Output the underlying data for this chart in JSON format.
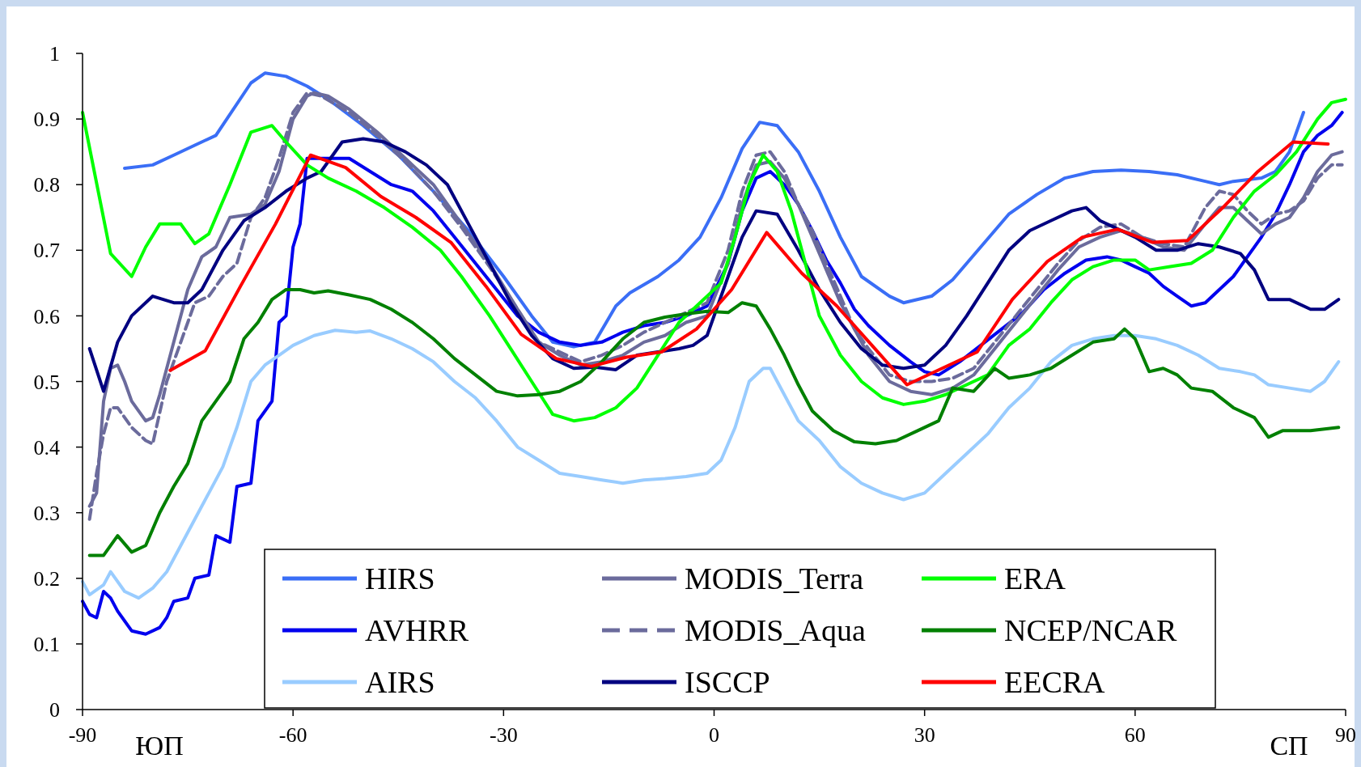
{
  "chart_data": {
    "type": "line",
    "line_style": "solid",
    "xlim": [
      -90,
      90
    ],
    "xticks": [
      -90,
      -60,
      -30,
      0,
      30,
      60,
      90
    ],
    "ylim": [
      0,
      1
    ],
    "yticks": [
      0,
      0.1,
      0.2,
      0.3,
      0.4,
      0.5,
      0.6,
      0.7,
      0.8,
      0.9,
      1
    ],
    "grid": false,
    "legend": "bottom",
    "annotations": [
      "ЮП",
      "СП"
    ],
    "series": [
      {
        "name": "HIRS",
        "color": "#3a6ef6",
        "x": [
          -84,
          -80,
          -77,
          -74,
          -71,
          -66,
          -64,
          -61,
          -58,
          -55,
          -50,
          -45,
          -40,
          -35,
          -30,
          -26,
          -23,
          -20,
          -17,
          -14,
          -12,
          -8,
          -5,
          -2,
          1,
          4,
          6.5,
          9,
          12,
          15,
          18,
          21,
          25,
          27,
          31,
          34,
          38,
          42,
          46,
          50,
          54,
          58,
          62,
          66,
          70,
          72,
          74,
          78,
          80,
          82,
          84
        ],
        "values": [
          0.825,
          0.83,
          0.845,
          0.86,
          0.875,
          0.955,
          0.97,
          0.965,
          0.95,
          0.93,
          0.89,
          0.845,
          0.79,
          0.73,
          0.66,
          0.6,
          0.56,
          0.553,
          0.56,
          0.615,
          0.635,
          0.66,
          0.685,
          0.72,
          0.78,
          0.855,
          0.895,
          0.89,
          0.85,
          0.79,
          0.72,
          0.66,
          0.63,
          0.62,
          0.63,
          0.655,
          0.705,
          0.755,
          0.785,
          0.81,
          0.82,
          0.822,
          0.82,
          0.815,
          0.805,
          0.8,
          0.805,
          0.81,
          0.82,
          0.85,
          0.91
        ]
      },
      {
        "name": "AVHRR",
        "color": "#0000ee",
        "x": [
          -90,
          -89,
          -88,
          -87,
          -86,
          -85,
          -83,
          -81,
          -79,
          -78,
          -77,
          -75,
          -74,
          -72,
          -71,
          -69,
          -68,
          -66,
          -65,
          -63,
          -62,
          -61,
          -60,
          -59,
          -58,
          -57,
          -55,
          -52,
          -49,
          -46,
          -43,
          -40,
          -37,
          -34,
          -31,
          -28,
          -25,
          -22,
          -19,
          -16,
          -13,
          -10,
          -7,
          -4,
          -1,
          2,
          4,
          6,
          8,
          10,
          12,
          14,
          16,
          18,
          20,
          22,
          25,
          28,
          30,
          32,
          35,
          38,
          41,
          44,
          47,
          50,
          53,
          56,
          58,
          60,
          62,
          64,
          66,
          68,
          70,
          72,
          74,
          76,
          78,
          80,
          82,
          84,
          86,
          88,
          89.5
        ],
        "values": [
          0.165,
          0.145,
          0.14,
          0.18,
          0.17,
          0.15,
          0.12,
          0.115,
          0.125,
          0.14,
          0.165,
          0.17,
          0.2,
          0.205,
          0.265,
          0.255,
          0.34,
          0.345,
          0.44,
          0.47,
          0.59,
          0.6,
          0.705,
          0.74,
          0.84,
          0.84,
          0.84,
          0.84,
          0.82,
          0.8,
          0.79,
          0.76,
          0.72,
          0.68,
          0.64,
          0.6,
          0.575,
          0.56,
          0.555,
          0.56,
          0.575,
          0.585,
          0.59,
          0.6,
          0.615,
          0.68,
          0.76,
          0.81,
          0.82,
          0.8,
          0.77,
          0.73,
          0.685,
          0.65,
          0.61,
          0.585,
          0.555,
          0.53,
          0.515,
          0.51,
          0.53,
          0.555,
          0.58,
          0.605,
          0.64,
          0.665,
          0.685,
          0.69,
          0.685,
          0.675,
          0.665,
          0.645,
          0.63,
          0.615,
          0.62,
          0.64,
          0.66,
          0.69,
          0.72,
          0.755,
          0.8,
          0.85,
          0.875,
          0.89,
          0.91
        ]
      },
      {
        "name": "AIRS",
        "color": "#99ccff",
        "x": [
          -90,
          -89,
          -87,
          -86,
          -84,
          -82,
          -80,
          -78,
          -76,
          -74,
          -72,
          -70,
          -68,
          -66,
          -64,
          -62,
          -60,
          -57,
          -54,
          -51,
          -49,
          -46,
          -43,
          -40,
          -37,
          -34,
          -31,
          -28,
          -25,
          -22,
          -19,
          -16,
          -13,
          -10,
          -7,
          -4,
          -1,
          1,
          3,
          5,
          7,
          8,
          10,
          12,
          15,
          18,
          21,
          24,
          27,
          30,
          33,
          36,
          39,
          42,
          45,
          48,
          51,
          54,
          57,
          60,
          63,
          66,
          69,
          72,
          75,
          77,
          79,
          82,
          85,
          87,
          89
        ],
        "values": [
          0.195,
          0.175,
          0.19,
          0.21,
          0.18,
          0.17,
          0.185,
          0.21,
          0.25,
          0.29,
          0.33,
          0.37,
          0.43,
          0.5,
          0.525,
          0.54,
          0.555,
          0.57,
          0.578,
          0.575,
          0.577,
          0.565,
          0.55,
          0.53,
          0.5,
          0.475,
          0.44,
          0.4,
          0.38,
          0.36,
          0.355,
          0.35,
          0.345,
          0.35,
          0.352,
          0.355,
          0.36,
          0.38,
          0.43,
          0.5,
          0.52,
          0.52,
          0.48,
          0.44,
          0.41,
          0.37,
          0.345,
          0.33,
          0.32,
          0.33,
          0.36,
          0.39,
          0.42,
          0.46,
          0.49,
          0.53,
          0.555,
          0.565,
          0.57,
          0.57,
          0.565,
          0.555,
          0.54,
          0.52,
          0.515,
          0.51,
          0.495,
          0.49,
          0.485,
          0.5,
          0.53
        ]
      },
      {
        "name": "MODIS_Terra",
        "color": "#6b6b9c",
        "x": [
          -89,
          -88,
          -87,
          -86,
          -85,
          -84,
          -83,
          -81,
          -80,
          -79,
          -77,
          -75,
          -73,
          -71,
          -69,
          -66,
          -64,
          -62,
          -60,
          -58,
          -57,
          -55,
          -52,
          -48,
          -44,
          -40,
          -36,
          -32,
          -28,
          -25,
          -22,
          -19,
          -16,
          -13,
          -10,
          -7,
          -4,
          -1,
          2,
          4,
          6,
          8,
          10,
          12,
          14,
          16,
          18,
          20,
          22,
          25,
          28,
          31,
          34,
          37,
          40,
          43,
          46,
          49,
          52,
          55,
          58,
          61,
          64,
          67,
          70,
          72,
          74,
          76,
          78,
          80,
          82,
          84,
          86,
          88,
          89.5
        ],
        "values": [
          0.31,
          0.33,
          0.47,
          0.52,
          0.525,
          0.5,
          0.47,
          0.44,
          0.445,
          0.48,
          0.56,
          0.64,
          0.69,
          0.705,
          0.75,
          0.755,
          0.77,
          0.82,
          0.9,
          0.935,
          0.94,
          0.935,
          0.915,
          0.88,
          0.84,
          0.8,
          0.74,
          0.68,
          0.61,
          0.56,
          0.54,
          0.525,
          0.53,
          0.54,
          0.56,
          0.57,
          0.59,
          0.6,
          0.68,
          0.77,
          0.83,
          0.835,
          0.81,
          0.77,
          0.72,
          0.67,
          0.62,
          0.58,
          0.54,
          0.5,
          0.485,
          0.48,
          0.49,
          0.51,
          0.55,
          0.59,
          0.63,
          0.67,
          0.705,
          0.72,
          0.73,
          0.72,
          0.705,
          0.7,
          0.74,
          0.765,
          0.765,
          0.745,
          0.725,
          0.74,
          0.75,
          0.78,
          0.82,
          0.845,
          0.85
        ]
      },
      {
        "name": "MODIS_Aqua",
        "color": "#6b6b9c",
        "line_style": "dashed",
        "x": [
          -89,
          -88,
          -87,
          -86,
          -85,
          -83,
          -81,
          -80,
          -78,
          -76,
          -74,
          -72,
          -70,
          -68,
          -66,
          -64,
          -62,
          -60,
          -58,
          -56,
          -52,
          -48,
          -44,
          -40,
          -36,
          -32,
          -28,
          -25,
          -22,
          -19,
          -16,
          -13,
          -10,
          -7,
          -4,
          -1,
          2,
          4,
          6,
          8,
          10,
          12,
          14,
          16,
          18,
          20,
          22,
          25,
          28,
          31,
          34,
          37,
          40,
          43,
          46,
          49,
          52,
          55,
          58,
          61,
          64,
          67,
          70,
          72,
          74,
          76,
          78,
          80,
          82,
          84,
          86,
          88,
          89.5
        ],
        "values": [
          0.29,
          0.36,
          0.42,
          0.46,
          0.46,
          0.43,
          0.41,
          0.405,
          0.5,
          0.56,
          0.62,
          0.63,
          0.66,
          0.68,
          0.75,
          0.78,
          0.84,
          0.91,
          0.94,
          0.935,
          0.91,
          0.875,
          0.835,
          0.79,
          0.735,
          0.675,
          0.61,
          0.56,
          0.545,
          0.53,
          0.54,
          0.555,
          0.575,
          0.59,
          0.605,
          0.62,
          0.7,
          0.79,
          0.845,
          0.85,
          0.82,
          0.77,
          0.73,
          0.68,
          0.63,
          0.58,
          0.55,
          0.51,
          0.5,
          0.5,
          0.505,
          0.52,
          0.56,
          0.6,
          0.64,
          0.68,
          0.715,
          0.735,
          0.74,
          0.72,
          0.71,
          0.705,
          0.765,
          0.79,
          0.785,
          0.76,
          0.74,
          0.755,
          0.76,
          0.775,
          0.81,
          0.83,
          0.83
        ]
      },
      {
        "name": "ISCCP",
        "color": "#000080",
        "x": [
          -89,
          -87,
          -85,
          -83,
          -80,
          -77,
          -75,
          -73,
          -70,
          -67,
          -64,
          -61,
          -58,
          -56,
          -53,
          -50,
          -47,
          -44,
          -41,
          -38,
          -35,
          -32,
          -29,
          -26,
          -23,
          -20,
          -17,
          -14,
          -11,
          -8,
          -5,
          -3,
          -1,
          2,
          4,
          6,
          9,
          12,
          15,
          18,
          21,
          24,
          27,
          30,
          33,
          36,
          39,
          42,
          45,
          48,
          51,
          53,
          55,
          57,
          60,
          63,
          66,
          69,
          72,
          75,
          77,
          79,
          82,
          85,
          87,
          89
        ],
        "values": [
          0.55,
          0.485,
          0.56,
          0.6,
          0.63,
          0.62,
          0.62,
          0.64,
          0.7,
          0.745,
          0.765,
          0.79,
          0.81,
          0.82,
          0.865,
          0.87,
          0.865,
          0.85,
          0.83,
          0.8,
          0.74,
          0.68,
          0.62,
          0.57,
          0.535,
          0.52,
          0.522,
          0.518,
          0.54,
          0.545,
          0.55,
          0.555,
          0.57,
          0.66,
          0.72,
          0.76,
          0.755,
          0.7,
          0.64,
          0.59,
          0.55,
          0.525,
          0.52,
          0.525,
          0.555,
          0.6,
          0.65,
          0.7,
          0.73,
          0.745,
          0.76,
          0.765,
          0.745,
          0.735,
          0.72,
          0.7,
          0.7,
          0.71,
          0.705,
          0.695,
          0.67,
          0.625,
          0.625,
          0.61,
          0.61,
          0.625
        ]
      },
      {
        "name": "ERA",
        "color": "#00ff00",
        "x": [
          -90,
          -86,
          -83,
          -81,
          -79,
          -76,
          -74,
          -72,
          -69,
          -66,
          -63,
          -61,
          -58,
          -55,
          -51,
          -47,
          -43,
          -39,
          -36,
          -32,
          -29,
          -26,
          -23,
          -20,
          -17,
          -14,
          -11,
          -8,
          -5,
          -2,
          1,
          3,
          5,
          7,
          9,
          11,
          13,
          15,
          18,
          21,
          24,
          27,
          30,
          33,
          36,
          39,
          42,
          45,
          48,
          51,
          54,
          57,
          60,
          62,
          65,
          68,
          71,
          74,
          77,
          80,
          83,
          86,
          88,
          90
        ],
        "values": [
          0.91,
          0.695,
          0.66,
          0.705,
          0.74,
          0.74,
          0.71,
          0.725,
          0.8,
          0.88,
          0.89,
          0.865,
          0.83,
          0.81,
          0.79,
          0.765,
          0.735,
          0.7,
          0.66,
          0.6,
          0.55,
          0.5,
          0.45,
          0.44,
          0.445,
          0.46,
          0.49,
          0.54,
          0.59,
          0.62,
          0.65,
          0.72,
          0.8,
          0.845,
          0.82,
          0.76,
          0.68,
          0.6,
          0.54,
          0.5,
          0.475,
          0.465,
          0.47,
          0.48,
          0.495,
          0.51,
          0.555,
          0.58,
          0.62,
          0.655,
          0.675,
          0.685,
          0.685,
          0.67,
          0.675,
          0.68,
          0.7,
          0.75,
          0.79,
          0.815,
          0.85,
          0.9,
          0.925,
          0.93
        ]
      },
      {
        "name": "NCEP/NCAR",
        "color": "#008000",
        "x": [
          -89,
          -87,
          -85,
          -83,
          -81,
          -79,
          -77,
          -75,
          -73,
          -71,
          -69,
          -67,
          -65,
          -63,
          -61,
          -59,
          -57,
          -55,
          -52,
          -49,
          -46,
          -43,
          -40,
          -37,
          -34,
          -31,
          -28,
          -25,
          -22,
          -19,
          -16,
          -13,
          -10,
          -7,
          -4,
          -1,
          2,
          4,
          6,
          8,
          10,
          12,
          14,
          17,
          20,
          23,
          26,
          29,
          32,
          34,
          37,
          40,
          42,
          45,
          48,
          51,
          54,
          57,
          58.5,
          60,
          62,
          64,
          66,
          68,
          71,
          74,
          77,
          79,
          81,
          85,
          89
        ],
        "values": [
          0.235,
          0.235,
          0.265,
          0.24,
          0.25,
          0.3,
          0.34,
          0.375,
          0.44,
          0.47,
          0.5,
          0.565,
          0.59,
          0.625,
          0.64,
          0.64,
          0.635,
          0.638,
          0.632,
          0.625,
          0.61,
          0.59,
          0.565,
          0.535,
          0.51,
          0.485,
          0.478,
          0.48,
          0.485,
          0.5,
          0.53,
          0.565,
          0.59,
          0.598,
          0.603,
          0.607,
          0.605,
          0.62,
          0.615,
          0.58,
          0.54,
          0.495,
          0.455,
          0.425,
          0.408,
          0.405,
          0.41,
          0.425,
          0.44,
          0.49,
          0.485,
          0.52,
          0.505,
          0.51,
          0.52,
          0.54,
          0.56,
          0.565,
          0.58,
          0.565,
          0.515,
          0.52,
          0.51,
          0.49,
          0.485,
          0.46,
          0.445,
          0.415,
          0.425,
          0.425,
          0.43
        ]
      },
      {
        "name": "EECRA",
        "color": "#ff0000",
        "x": [
          -77.5,
          -72.5,
          -67.5,
          -62.5,
          -57.5,
          -52.5,
          -47.5,
          -42.5,
          -37.5,
          -32.5,
          -27.5,
          -22.5,
          -17.5,
          -12.5,
          -7.5,
          -2.5,
          2.5,
          7.5,
          12.5,
          17.5,
          22.5,
          27.5,
          32.5,
          37.5,
          42.5,
          47.5,
          52.5,
          57.5,
          62.5,
          67.5,
          72.5,
          77.5,
          82.5,
          87.5
        ],
        "values": [
          0.517,
          0.547,
          0.645,
          0.74,
          0.845,
          0.826,
          0.782,
          0.75,
          0.712,
          0.645,
          0.572,
          0.535,
          0.523,
          0.537,
          0.545,
          0.58,
          0.64,
          0.727,
          0.665,
          0.615,
          0.555,
          0.495,
          0.52,
          0.545,
          0.625,
          0.683,
          0.72,
          0.732,
          0.712,
          0.715,
          0.765,
          0.82,
          0.865,
          0.862
        ]
      }
    ]
  }
}
